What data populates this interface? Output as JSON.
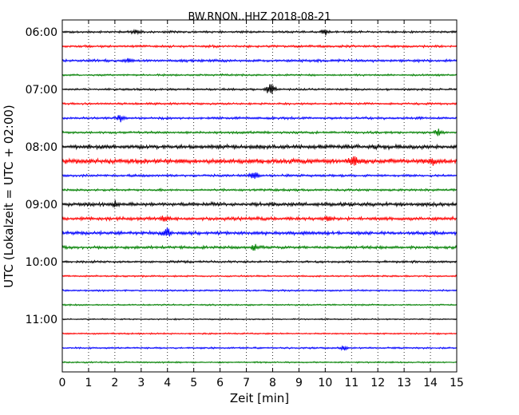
{
  "chart_data": {
    "type": "line",
    "title": "BW.RNON..HHZ 2018-08-21",
    "xlabel": "Zeit  [min]",
    "ylabel": "UTC (Lokalzeit = UTC + 02:00)",
    "xlim": [
      0,
      15
    ],
    "x_ticks": [
      "0",
      "1",
      "2",
      "3",
      "4",
      "5",
      "6",
      "7",
      "8",
      "9",
      "10",
      "11",
      "12",
      "13",
      "14",
      "15"
    ],
    "y_ticks": [
      "06:00",
      "07:00",
      "08:00",
      "09:00",
      "10:00",
      "11:00"
    ],
    "grid": "vertical-dotted",
    "trace_colors": [
      "#000000",
      "#ff0000",
      "#0000ff",
      "#008000"
    ],
    "traces": [
      {
        "start": "06:00",
        "level": 0.55
      },
      {
        "start": "06:15",
        "level": 0.6
      },
      {
        "start": "06:30",
        "level": 0.7
      },
      {
        "start": "06:45",
        "level": 0.5
      },
      {
        "start": "07:00",
        "level": 0.55
      },
      {
        "start": "07:15",
        "level": 0.55
      },
      {
        "start": "07:30",
        "level": 0.65
      },
      {
        "start": "07:45",
        "level": 0.6
      },
      {
        "start": "08:00",
        "level": 1.1
      },
      {
        "start": "08:15",
        "level": 1.3
      },
      {
        "start": "08:30",
        "level": 0.65
      },
      {
        "start": "08:45",
        "level": 0.6
      },
      {
        "start": "09:00",
        "level": 1.0
      },
      {
        "start": "09:15",
        "level": 0.9
      },
      {
        "start": "09:30",
        "level": 0.9
      },
      {
        "start": "09:45",
        "level": 0.75
      },
      {
        "start": "10:00",
        "level": 0.6
      },
      {
        "start": "10:15",
        "level": 0.45
      },
      {
        "start": "10:30",
        "level": 0.45
      },
      {
        "start": "10:45",
        "level": 0.4
      },
      {
        "start": "11:00",
        "level": 0.35
      },
      {
        "start": "11:15",
        "level": 0.4
      },
      {
        "start": "11:30",
        "level": 0.45
      },
      {
        "start": "11:45",
        "level": 0.4
      }
    ],
    "events": [
      {
        "trace": 4,
        "minute": 7.9,
        "level": 4.5
      },
      {
        "trace": 10,
        "minute": 7.3,
        "level": 2.8
      },
      {
        "trace": 9,
        "minute": 11.1,
        "level": 2.4
      },
      {
        "trace": 9,
        "minute": 14.1,
        "level": 2.0
      },
      {
        "trace": 7,
        "minute": 14.3,
        "level": 2.0
      },
      {
        "trace": 14,
        "minute": 4.0,
        "level": 2.8
      },
      {
        "trace": 13,
        "minute": 3.9,
        "level": 2.0
      },
      {
        "trace": 12,
        "minute": 2.0,
        "level": 1.8
      },
      {
        "trace": 0,
        "minute": 2.8,
        "level": 1.6
      },
      {
        "trace": 0,
        "minute": 10.0,
        "level": 1.6
      },
      {
        "trace": 2,
        "minute": 2.5,
        "level": 1.6
      },
      {
        "trace": 6,
        "minute": 2.2,
        "level": 1.8
      },
      {
        "trace": 15,
        "minute": 7.3,
        "level": 1.8
      },
      {
        "trace": 13,
        "minute": 10.1,
        "level": 1.6
      },
      {
        "trace": 22,
        "minute": 10.7,
        "level": 1.5
      }
    ]
  }
}
